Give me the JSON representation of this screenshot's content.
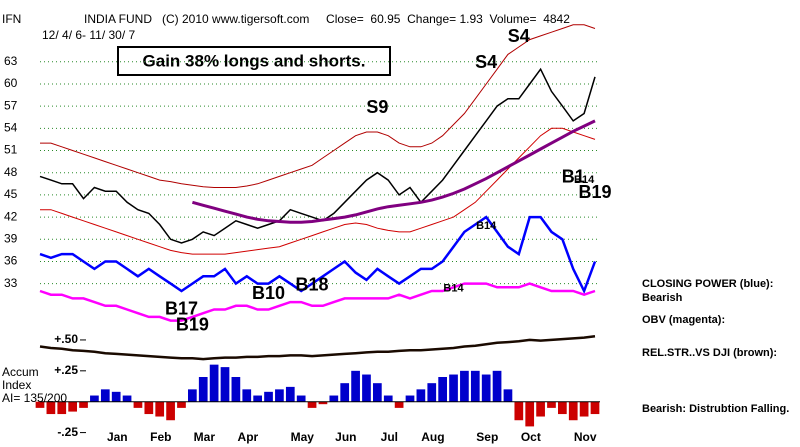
{
  "chart_data": [
    {
      "type": "line",
      "symbol": "IFN",
      "title": "INDIA FUND   (C) 2010 www.tigersoft.com     Close=  60.95  Change= 1.93  Volume=  4842",
      "subtitle": "12/ 4/ 6- 11/ 30/ 7",
      "headline": "Gain 38% longs and shorts.",
      "categories": [
        null,
        null,
        null,
        null,
        null,
        null,
        "Jan",
        null,
        null,
        null,
        "Feb",
        null,
        null,
        null,
        "Mar",
        null,
        null,
        null,
        "Apr",
        null,
        null,
        null,
        null,
        "May",
        null,
        null,
        null,
        "Jun",
        null,
        null,
        null,
        "Jul",
        null,
        null,
        null,
        "Aug",
        null,
        null,
        null,
        null,
        "Sep",
        null,
        null,
        null,
        "Oct",
        null,
        null,
        null,
        null,
        "Nov",
        null,
        null
      ],
      "ylim": [
        22,
        70
      ],
      "yticks": [
        33,
        36,
        39,
        42,
        45,
        48,
        51,
        54,
        57,
        60,
        63
      ],
      "grid": true,
      "series": [
        {
          "color": "#000000",
          "width": 1.5,
          "values": [
            47.5,
            47,
            46.5,
            46.5,
            44.5,
            46,
            45.5,
            45.5,
            44,
            43,
            42.5,
            41,
            39,
            38.5,
            39,
            40,
            39.5,
            40.5,
            41.5,
            41,
            40.5,
            41,
            41.5,
            43,
            42.5,
            42,
            41.5,
            42.5,
            44,
            45.5,
            47,
            48,
            47,
            45,
            46,
            44,
            45.5,
            47,
            49,
            51,
            53,
            55,
            57,
            58,
            58,
            60,
            62,
            59,
            57,
            55,
            56,
            60.95
          ]
        },
        {
          "color": "#b00000",
          "width": 1,
          "values": [
            52,
            52,
            51.5,
            51,
            50.5,
            50,
            49.5,
            49,
            48.5,
            48,
            47.5,
            47,
            46.8,
            46.5,
            46.3,
            46.1,
            46,
            46,
            46,
            46.2,
            46.5,
            47,
            47.5,
            48,
            48.5,
            49,
            50,
            51,
            52,
            53,
            53.5,
            53.5,
            53,
            52,
            51.5,
            51.5,
            52,
            53,
            54.5,
            56,
            58,
            60,
            62,
            64,
            65,
            66,
            66.5,
            67,
            67.5,
            68,
            68,
            67.5
          ]
        },
        {
          "color": "#d00000",
          "width": 1,
          "values": [
            43,
            43,
            42.5,
            42,
            41.5,
            41,
            40.5,
            40,
            39.5,
            39,
            38.5,
            38,
            37.5,
            37.2,
            37,
            37,
            37,
            37,
            37.2,
            37.4,
            37.6,
            37.8,
            38,
            38.5,
            39,
            39.5,
            40,
            40.5,
            41,
            41.2,
            41,
            40.5,
            40.2,
            40,
            40,
            40.5,
            41,
            41.5,
            42,
            43,
            44,
            45.5,
            47,
            48.5,
            50,
            51.5,
            53,
            54,
            54,
            53.5,
            53,
            52.5
          ]
        },
        {
          "color": "#800080",
          "width": 3,
          "values": [
            null,
            null,
            null,
            null,
            null,
            null,
            null,
            null,
            null,
            null,
            null,
            null,
            null,
            null,
            44,
            43.6,
            43.2,
            42.8,
            42.4,
            42,
            41.7,
            41.5,
            41.4,
            41.3,
            41.3,
            41.4,
            41.6,
            41.8,
            42,
            42.3,
            42.7,
            43.1,
            43.4,
            43.6,
            43.8,
            44,
            44.3,
            44.7,
            45.2,
            45.8,
            46.5,
            47.2,
            48,
            48.8,
            49.6,
            50.4,
            51.2,
            52,
            52.8,
            53.6,
            54.3,
            55
          ]
        },
        {
          "name": "CLOSING POWER (blue):",
          "status": "Bearish",
          "color": "#0000ff",
          "width": 2.5,
          "values": [
            37,
            36.5,
            37,
            37,
            36,
            35,
            36,
            36,
            35,
            34,
            35,
            34,
            33,
            32,
            33,
            34,
            34,
            35,
            33,
            34,
            33,
            33,
            34,
            33,
            32,
            33,
            34,
            35,
            36,
            34.5,
            33.5,
            35,
            34,
            33,
            34,
            35,
            35,
            36,
            38,
            40,
            41,
            42,
            40,
            38,
            37,
            42,
            42,
            40,
            39,
            35,
            32,
            36
          ]
        },
        {
          "name": "OBV (magenta):",
          "color": "#ff00ff",
          "width": 2.5,
          "values": [
            32,
            31.5,
            31.5,
            31,
            31,
            30.5,
            30,
            30,
            29.5,
            29,
            28.5,
            28.5,
            28,
            28,
            28.5,
            29,
            29.5,
            29.5,
            30,
            30,
            29.5,
            29.5,
            30,
            30.5,
            30.5,
            30,
            30,
            30.5,
            31,
            31,
            31,
            31,
            31,
            31.5,
            31,
            31.5,
            32,
            32,
            32.5,
            33,
            33,
            33,
            32.5,
            32.5,
            32.5,
            33,
            32.5,
            32,
            32,
            32,
            31.5,
            32
          ]
        },
        {
          "name": "REL.STR..VS DJI (brown):",
          "color": "#1a0a00",
          "width": 2.5,
          "values": [
            24.5,
            24.3,
            24.2,
            24,
            23.9,
            23.8,
            23.6,
            23.5,
            23.4,
            23.3,
            23.2,
            23.1,
            23,
            22.9,
            22.9,
            22.8,
            22.9,
            23,
            23,
            23.1,
            23.1,
            23.2,
            23.2,
            23.3,
            23.3,
            23.2,
            23.3,
            23.4,
            23.5,
            23.6,
            23.7,
            23.8,
            23.8,
            23.9,
            24,
            24,
            24.1,
            24.2,
            24.3,
            24.5,
            24.6,
            24.8,
            25,
            25.1,
            25.2,
            25.4,
            25.3,
            25.4,
            25.5,
            25.6,
            25.7,
            25.9
          ]
        }
      ],
      "annotations": [
        {
          "text": "S4",
          "x": 44,
          "y": 66.3
        },
        {
          "text": "S4",
          "x": 41,
          "y": 62.8
        },
        {
          "text": "S9",
          "x": 31,
          "y": 56.7
        },
        {
          "text": "B10",
          "x": 21,
          "y": 31.6
        },
        {
          "text": "B18",
          "x": 25,
          "y": 32.7
        },
        {
          "text": "B17",
          "x": 13,
          "y": 29.5
        },
        {
          "text": "B19",
          "x": 14,
          "y": 27.3
        },
        {
          "text": "B14",
          "x": 41,
          "y": 40.8,
          "small": true
        },
        {
          "text": "B14",
          "x": 38,
          "y": 32.3,
          "small": true
        },
        {
          "text": "B1",
          "x": 49,
          "y": 47.3
        },
        {
          "text": "B14",
          "x": 50,
          "y": 47,
          "small": true
        },
        {
          "text": "B19",
          "x": 51,
          "y": 45.2
        }
      ],
      "note": "Bearish: Distrubtion Falling."
    },
    {
      "type": "bar",
      "label": [
        "Accum",
        "Index",
        "AI= 135/200"
      ],
      "ylim": [
        -0.31,
        0.54
      ],
      "yticks": [
        {
          "value": 0.5,
          "label": "+.50"
        },
        {
          "value": 0.25,
          "label": "+.25"
        },
        {
          "value": -0.25,
          "label": "-.25"
        }
      ],
      "pos_color": "#0000cc",
      "neg_color": "#cc0000",
      "values": [
        -0.05,
        -0.1,
        -0.1,
        -0.08,
        -0.05,
        0.05,
        0.1,
        0.08,
        0.05,
        -0.05,
        -0.1,
        -0.12,
        -0.15,
        -0.05,
        0.1,
        0.2,
        0.3,
        0.28,
        0.2,
        0.1,
        0.05,
        0.08,
        0.1,
        0.12,
        0.05,
        -0.05,
        -0.02,
        0.05,
        0.15,
        0.25,
        0.22,
        0.15,
        0.05,
        -0.05,
        0.05,
        0.1,
        0.15,
        0.2,
        0.22,
        0.25,
        0.25,
        0.22,
        0.25,
        0.1,
        -0.15,
        -0.2,
        -0.12,
        -0.05,
        -0.1,
        -0.15,
        -0.12,
        -0.1
      ]
    }
  ]
}
